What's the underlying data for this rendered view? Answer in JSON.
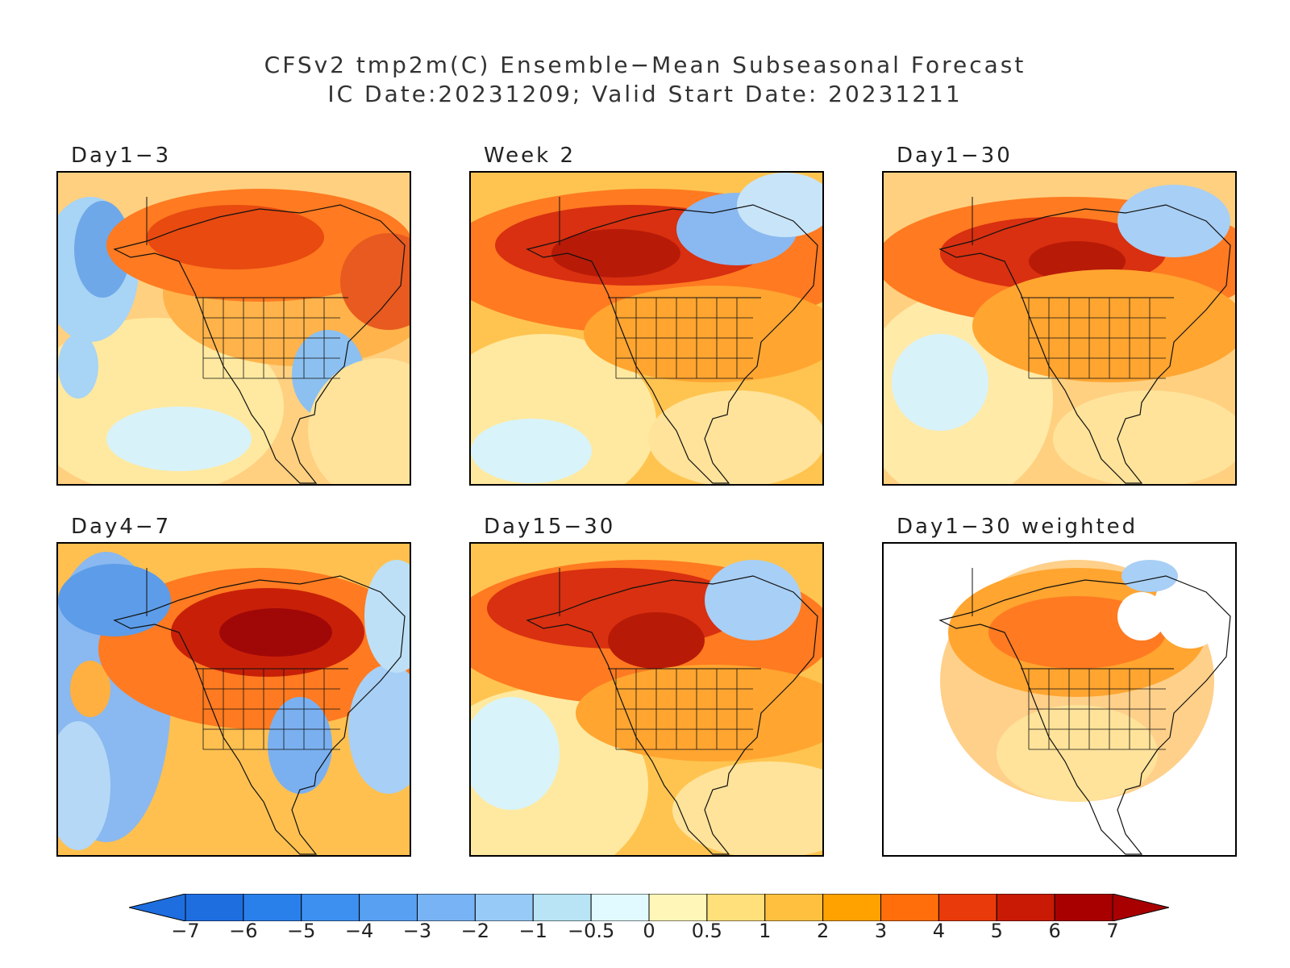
{
  "title": {
    "line1": "CFSv2 tmp2m(C) Ensemble−Mean Subseasonal Forecast",
    "line2": "IC Date:20231209; Valid Start Date: 20231211"
  },
  "panels": [
    {
      "id": "day1-3",
      "label": "Day1−3",
      "blob_scheme": "d13"
    },
    {
      "id": "week2",
      "label": "Week 2",
      "blob_scheme": "w2"
    },
    {
      "id": "day1-30",
      "label": "Day1−30",
      "blob_scheme": "d130"
    },
    {
      "id": "day4-7",
      "label": "Day4−7",
      "blob_scheme": "d47"
    },
    {
      "id": "day15-30",
      "label": "Day15−30",
      "blob_scheme": "d1530"
    },
    {
      "id": "day1-30w",
      "label": "Day1−30 weighted",
      "blob_scheme": "w"
    }
  ],
  "colorbar": {
    "labels": [
      "−7",
      "−6",
      "−5",
      "−4",
      "−3",
      "−2",
      "−1",
      "−0.5",
      "0",
      "0.5",
      "1",
      "2",
      "3",
      "4",
      "5",
      "6",
      "7"
    ],
    "colors": [
      "#1e6ee0",
      "#2a80ea",
      "#3d90f0",
      "#57a0f2",
      "#78b4f5",
      "#98caf7",
      "#b8e4f6",
      "#e0faff",
      "#fff6b8",
      "#ffe07a",
      "#ffc040",
      "#ffa200",
      "#ff6e0a",
      "#e83a0a",
      "#c81a05",
      "#a80000"
    ],
    "left_arrow_color": "#1e6ee0",
    "right_arrow_color": "#a80000"
  }
}
